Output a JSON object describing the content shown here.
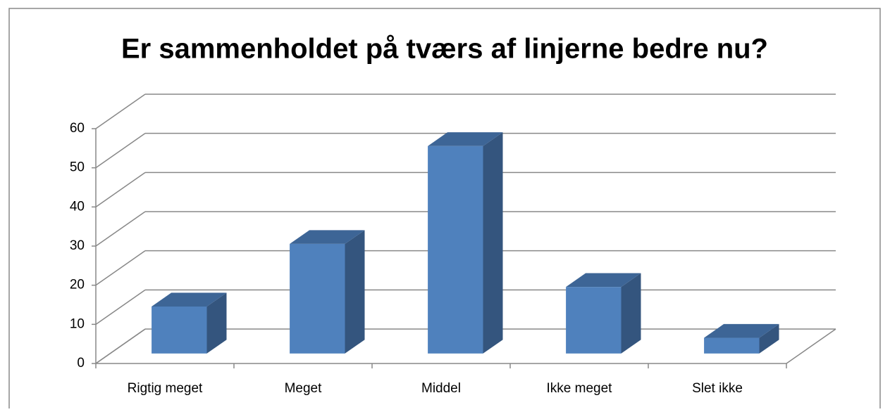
{
  "chart_data": {
    "type": "bar3d",
    "title": "Er sammenholdet på tværs af linjerne bedre nu?",
    "categories": [
      "Rigtig meget",
      "Meget",
      "Middel",
      "Ikke meget",
      "Slet ikke"
    ],
    "values": [
      12,
      28,
      53,
      17,
      4
    ],
    "color": "#4f81bd",
    "ylim": [
      0,
      60
    ],
    "yticks": [
      0,
      10,
      20,
      30,
      40,
      50,
      60
    ],
    "grid": true
  }
}
